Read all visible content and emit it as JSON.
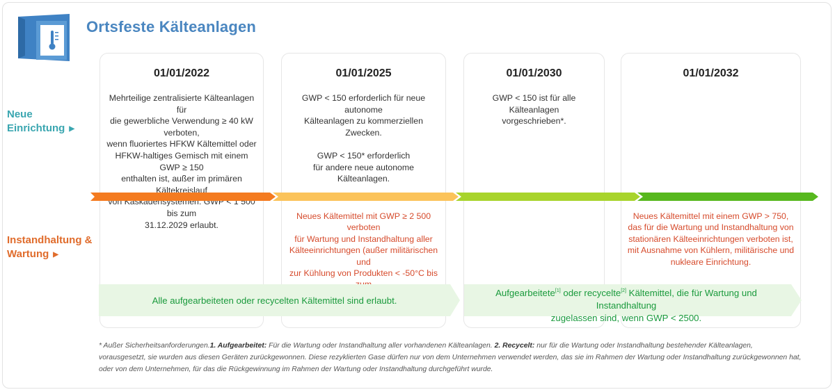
{
  "title": "Ortsfeste Kälteanlagen",
  "logo_icon": "thermometer-icon",
  "rows": {
    "new": "Neue\nEinrichtung",
    "maintenance": "Instandhaltung &\nWartung"
  },
  "columns": [
    {
      "date": "01/01/2022",
      "top": "Mehrteilige zentralisierte Kälteanlagen für\ndie gewerbliche Verwendung ≥ 40 kW verboten,\nwenn fluoriertes HFKW Kältemittel oder\nHFKW-haltiges Gemisch mit einem GWP ≥ 150\nenthalten ist, außer im primären Kältekreislauf\nvon Kaskadensystemen: GWP < 1 500 bis zum\n31.12.2029 erlaubt.",
      "bottom": ""
    },
    {
      "date": "01/01/2025",
      "top": "GWP < 150 erforderlich für neue autonome\nKälteanlagen zu kommerziellen Zwecken.\n\nGWP < 150* erforderlich\nfür andere neue autonome Kälteanlagen.",
      "bottom": "Neues Kältemittel mit GWP ≥ 2 500 verboten\nfür Wartung und Instandhaltung aller\nKälteeinrichtungen (außer militärischen und\nzur Kühlung von Produkten < -50°C bis zum\n31.12.2029)."
    },
    {
      "date": "01/01/2030",
      "top": "GWP < 150 ist für alle Kälteanlagen\nvorgeschrieben*.",
      "bottom": ""
    },
    {
      "date": "01/01/2032",
      "top": "",
      "bottom": "Neues Kältemittel mit einem GWP > 750,\ndas für die Wartung und Instandhaltung von\nstationären Kälteeinrichtungen verboten ist,\nmit Ausnahme von Kühlern, militärische und\nnukleare Einrichtung."
    }
  ],
  "timeline_colors": [
    "#f47b20",
    "#fbc35a",
    "#a8d42c",
    "#57b81e"
  ],
  "bands": {
    "band1": "Alle aufgearbeiteten oder recycelten Kältemittel sind erlaubt.",
    "band2_part1": "Aufgearbeitete",
    "band2_sup1": "[1]",
    "band2_part2": " oder recycelte",
    "band2_sup2": "[2]",
    "band2_part3": " Kältemittel, die für Wartung und Instandhaltung",
    "band2_line2": "zugelassen sind, wenn GWP < 2500."
  },
  "footnote": {
    "intro": "* Außer Sicherheitsanforderungen.",
    "term1": "1. Aufgearbeitet:",
    "text1": " Für die Wartung oder Instandhaltung aller vorhandenen Kälteanlagen. ",
    "term2": "2. Recycelt:",
    "text2": " nur für die Wartung oder Instandhaltung bestehender Kälteanlagen, vorausgesetzt, sie wurden aus diesen Geräten zurückgewonnen. Diese rezyklierten Gase dürfen nur von dem Unternehmen verwendet werden, das sie im Rahmen der Wartung oder Instandhaltung zurückgewonnen hat, oder von dem Unternehmen, für das die Rückgewinnung im Rahmen der Wartung oder Instandhaltung durchgeführt wurde."
  }
}
